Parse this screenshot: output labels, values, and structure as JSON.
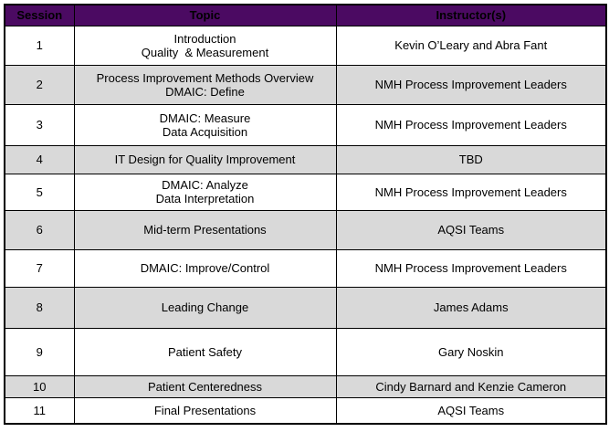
{
  "header": {
    "session": "Session",
    "topic": "Topic",
    "instructors": "Instructor(s)"
  },
  "colors": {
    "header_background": "#4B0A62",
    "header_text": "#FFFFFF",
    "shaded_row": "#D9D9D9",
    "border": "#000000"
  },
  "rows": [
    {
      "session": "1",
      "topic": "Introduction\nQuality  & Measurement",
      "instructor": "Kevin O’Leary and Abra Fant"
    },
    {
      "session": "2",
      "topic": "Process Improvement Methods Overview\nDMAIC: Define",
      "instructor": "NMH Process Improvement Leaders"
    },
    {
      "session": "3",
      "topic": "DMAIC: Measure\nData Acquisition",
      "instructor": "NMH Process Improvement Leaders"
    },
    {
      "session": "4",
      "topic": "IT Design for Quality Improvement",
      "instructor": "TBD"
    },
    {
      "session": "5",
      "topic": "DMAIC: Analyze\nData Interpretation",
      "instructor": "NMH Process Improvement Leaders"
    },
    {
      "session": "6",
      "topic": "Mid-term Presentations",
      "instructor": "AQSI Teams"
    },
    {
      "session": "7",
      "topic": "DMAIC: Improve/Control",
      "instructor": "NMH Process Improvement Leaders"
    },
    {
      "session": "8",
      "topic": "Leading Change",
      "instructor": "James Adams"
    },
    {
      "session": "9",
      "topic": "Patient Safety",
      "instructor": "Gary Noskin"
    },
    {
      "session": "10",
      "topic": "Patient Centeredness",
      "instructor": "Cindy Barnard and Kenzie Cameron"
    },
    {
      "session": "11",
      "topic": "Final Presentations",
      "instructor": "AQSI Teams"
    }
  ]
}
